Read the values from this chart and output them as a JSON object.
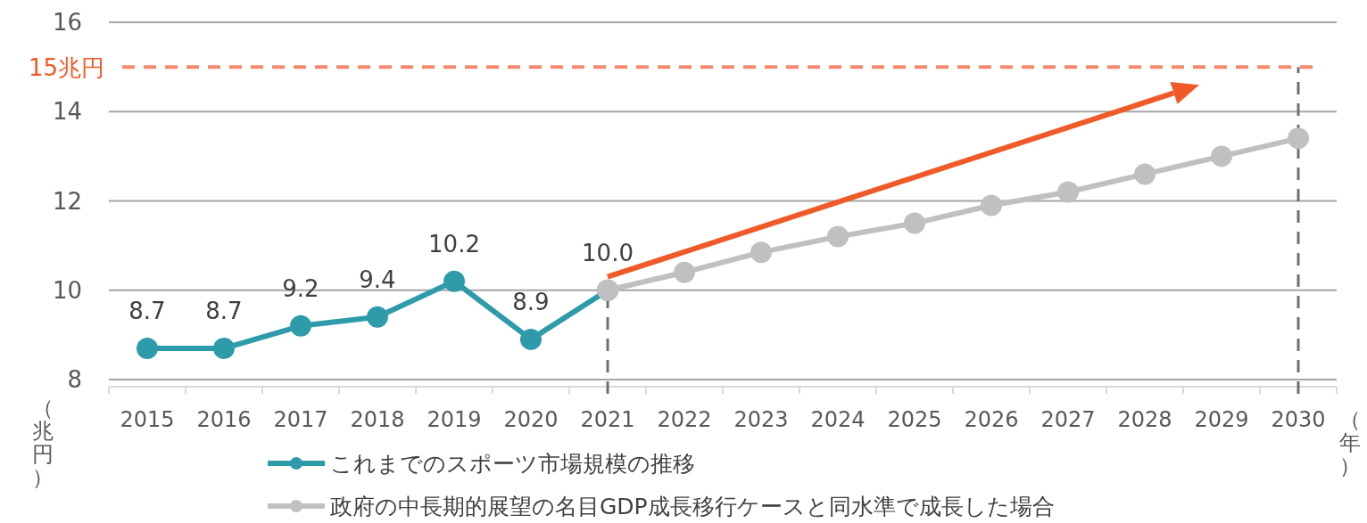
{
  "chart_data": {
    "type": "line",
    "ylabel": "（兆円）",
    "xlabel": "（年）",
    "categories": [
      "2015",
      "2016",
      "2017",
      "2018",
      "2019",
      "2020",
      "2021",
      "2022",
      "2023",
      "2024",
      "2025",
      "2026",
      "2027",
      "2028",
      "2029",
      "2030"
    ],
    "series": [
      {
        "name": "これまでのスポーツ市場規模の推移",
        "color": "#2e9bab",
        "values": [
          8.7,
          8.7,
          9.2,
          9.4,
          10.2,
          8.9,
          10.0,
          null,
          null,
          null,
          null,
          null,
          null,
          null,
          null,
          null
        ],
        "value_labels": [
          "8.7",
          "8.7",
          "9.2",
          "9.4",
          "10.2",
          "8.9",
          "10.0",
          null,
          null,
          null,
          null,
          null,
          null,
          null,
          null,
          null
        ]
      },
      {
        "name": "政府の中長期的展望の名目GDP成長移行ケースと同水準で成長した場合",
        "color": "#c0c0c0",
        "values": [
          null,
          null,
          null,
          null,
          null,
          null,
          10.0,
          10.4,
          10.85,
          11.2,
          11.5,
          11.9,
          12.2,
          12.6,
          13.0,
          13.4
        ]
      }
    ],
    "ylim": [
      8,
      16
    ],
    "yticks": [
      8,
      10,
      12,
      14,
      16
    ],
    "grid": "y",
    "marker": "circle",
    "line_style": "solid",
    "legend": "bottom",
    "ref_lines": [
      {
        "axis": "y",
        "value": 15,
        "label": "15兆円",
        "color": "#f4896b",
        "line_style": "dashed"
      },
      {
        "axis": "x",
        "value": "2021",
        "color": "#707070",
        "line_style": "dashed"
      },
      {
        "axis": "x",
        "value": "2030",
        "color": "#707070",
        "line_style": "dashed"
      }
    ]
  }
}
